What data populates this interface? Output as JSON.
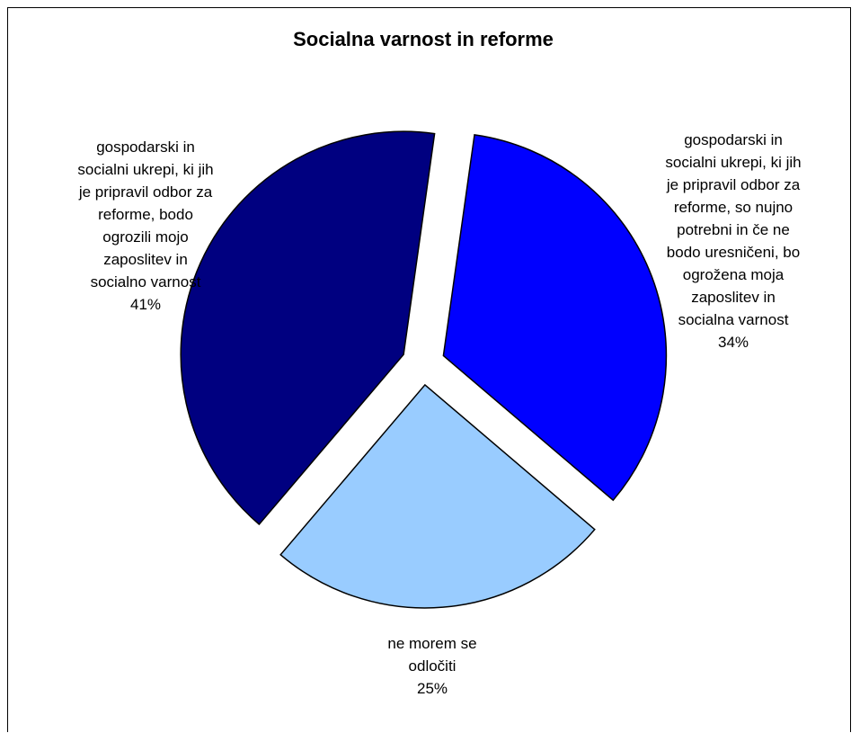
{
  "chart_data": {
    "type": "pie",
    "title": "Socialna varnost in reforme",
    "exploded": true,
    "slices": [
      {
        "label": "gospodarski in socialni ukrepi, ki jih je pripravil odbor za reforme, bodo ogrozili mojo zaposlitev in socialno varnost",
        "label_lines": [
          "gospodarski in",
          "socialni ukrepi, ki jih",
          "je pripravil odbor za",
          "reforme, bodo",
          "ogrozili mojo",
          "zaposlitev in",
          "socialno varnost"
        ],
        "value": 41,
        "percent_label": "41%",
        "color": "#000080"
      },
      {
        "label": "gospodarski in socialni ukrepi, ki jih je pripravil odbor za reforme, so nujno potrebni in če ne bodo uresničeni, bo ogrožena moja zaposlitev in socialna varnost",
        "label_lines": [
          "gospodarski in",
          "socialni ukrepi, ki jih",
          "je pripravil odbor za",
          "reforme, so nujno",
          "potrebni in če ne",
          "bodo uresničeni, bo",
          "ogrožena moja",
          "zaposlitev in",
          "socialna varnost"
        ],
        "value": 34,
        "percent_label": "34%",
        "color": "#0000FF"
      },
      {
        "label": "ne morem se odločiti",
        "label_lines": [
          "ne morem se",
          "odločiti"
        ],
        "value": 25,
        "percent_label": "25%",
        "color": "#99CCFF"
      }
    ]
  }
}
